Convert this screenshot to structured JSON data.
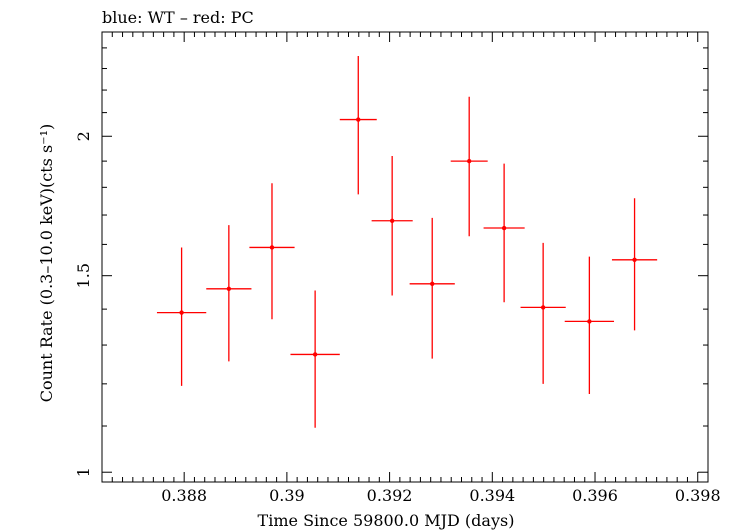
{
  "chart_data": {
    "type": "scatter",
    "title": "blue: WT – red: PC",
    "xlabel": "Time Since 59800.0 MJD (days)",
    "ylabel": "Count Rate (0.3–10.0 keV)(cts s⁻¹)",
    "xlim": [
      0.3864,
      0.3982
    ],
    "ylim": [
      0.98,
      2.48
    ],
    "yscale": "log",
    "x_ticks": [
      {
        "value": 0.388,
        "label": "0.388"
      },
      {
        "value": 0.39,
        "label": "0.39"
      },
      {
        "value": 0.392,
        "label": "0.392"
      },
      {
        "value": 0.394,
        "label": "0.394"
      },
      {
        "value": 0.396,
        "label": "0.396"
      },
      {
        "value": 0.398,
        "label": "0.398"
      }
    ],
    "y_ticks": [
      {
        "value": 1,
        "label": "1"
      },
      {
        "value": 1.5,
        "label": "1.5"
      },
      {
        "value": 2,
        "label": "2"
      }
    ],
    "series": [
      {
        "name": "PC",
        "color": "#ff0000",
        "points": [
          {
            "x": 0.38795,
            "y": 1.39,
            "xerr": 0.00048,
            "ylo": 1.195,
            "yhi": 1.59
          },
          {
            "x": 0.38887,
            "y": 1.46,
            "xerr": 0.00044,
            "ylo": 1.257,
            "yhi": 1.665
          },
          {
            "x": 0.38971,
            "y": 1.59,
            "xerr": 0.00044,
            "ylo": 1.371,
            "yhi": 1.815
          },
          {
            "x": 0.39055,
            "y": 1.275,
            "xerr": 0.00048,
            "ylo": 1.096,
            "yhi": 1.455
          },
          {
            "x": 0.39139,
            "y": 2.07,
            "xerr": 0.00036,
            "ylo": 1.774,
            "yhi": 2.36
          },
          {
            "x": 0.39205,
            "y": 1.68,
            "xerr": 0.0004,
            "ylo": 1.44,
            "yhi": 1.92
          },
          {
            "x": 0.39283,
            "y": 1.475,
            "xerr": 0.00044,
            "ylo": 1.264,
            "yhi": 1.69
          },
          {
            "x": 0.39355,
            "y": 1.9,
            "xerr": 0.00036,
            "ylo": 1.627,
            "yhi": 2.17
          },
          {
            "x": 0.39423,
            "y": 1.655,
            "xerr": 0.0004,
            "ylo": 1.42,
            "yhi": 1.89
          },
          {
            "x": 0.39499,
            "y": 1.405,
            "xerr": 0.00044,
            "ylo": 1.2,
            "yhi": 1.605
          },
          {
            "x": 0.39589,
            "y": 1.365,
            "xerr": 0.00048,
            "ylo": 1.175,
            "yhi": 1.56
          },
          {
            "x": 0.39677,
            "y": 1.55,
            "xerr": 0.00044,
            "ylo": 1.34,
            "yhi": 1.76
          }
        ]
      }
    ]
  }
}
